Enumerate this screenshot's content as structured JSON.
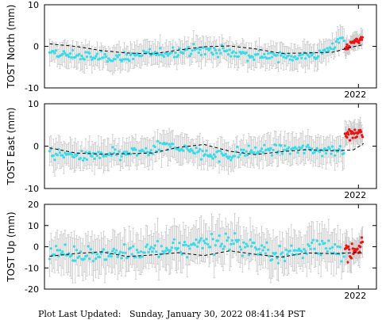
{
  "footer": {
    "label": "Plot Last Updated:",
    "timestamp": "Sunday, January 30, 2022 08:41:34 PST"
  },
  "colors": {
    "points_primary": "#33ddee",
    "points_recent": "#ee1111",
    "error_bars": "#c8c8c8",
    "model_line": "#000000",
    "frame": "#000000"
  },
  "chart_data": [
    {
      "type": "scatter",
      "title": "",
      "ylabel": "TOST North (mm)",
      "xlabel": "",
      "ylim": [
        -10,
        10
      ],
      "yticks": [
        -10,
        0,
        10
      ],
      "xlim": [
        2015.9,
        2022.35
      ],
      "xtick_label": "2022",
      "xtick_value": 2022.0,
      "grid": false,
      "legend": "none",
      "model_curve": {
        "x": [
          2016.0,
          2016.5,
          2017.0,
          2017.5,
          2018.0,
          2018.5,
          2019.0,
          2019.5,
          2020.0,
          2020.5,
          2021.0,
          2021.5,
          2021.9,
          2022.1
        ],
        "y": [
          0.6,
          0.0,
          -1.0,
          -1.6,
          -1.8,
          -0.9,
          -0.1,
          0.1,
          -0.6,
          -1.7,
          -1.6,
          -1.4,
          -0.1,
          0.4
        ]
      },
      "series": [
        {
          "name": "",
          "color_key": "points_primary",
          "x_start": 2016.0,
          "x_end": 2021.72,
          "n": 230,
          "anchors_y": [
            -1.9,
            -2.2,
            -2.7,
            -2.6,
            -1.9,
            -1.4,
            -0.8,
            -1.2,
            -1.9,
            -2.4,
            -2.3,
            -2.0,
            2.0
          ],
          "scatter_sd": 1.1,
          "error_bar": 2.6
        },
        {
          "name": "",
          "color_key": "points_recent",
          "x_start": 2021.74,
          "x_end": 2022.08,
          "n": 26,
          "anchors_y": [
            -0.8,
            1.2,
            1.9
          ],
          "scatter_sd": 0.8,
          "error_bar": 1.8
        }
      ]
    },
    {
      "type": "scatter",
      "title": "",
      "ylabel": "TOST East (mm)",
      "xlabel": "",
      "ylim": [
        -10,
        10
      ],
      "yticks": [
        -10,
        0,
        10
      ],
      "xlim": [
        2015.9,
        2022.35
      ],
      "xtick_label": "2022",
      "xtick_value": 2022.0,
      "grid": false,
      "legend": "none",
      "model_curve": {
        "x": [
          2016.0,
          2016.5,
          2017.0,
          2017.5,
          2018.0,
          2018.5,
          2019.0,
          2019.5,
          2020.0,
          2020.5,
          2021.0,
          2021.5,
          2021.9,
          2022.1
        ],
        "y": [
          -0.4,
          -1.6,
          -1.9,
          -1.8,
          -1.6,
          -0.3,
          0.4,
          -1.2,
          -2.0,
          -1.3,
          -0.8,
          -1.1,
          -0.9,
          0.6
        ]
      },
      "series": [
        {
          "name": "",
          "color_key": "points_primary",
          "x_start": 2016.0,
          "x_end": 2021.72,
          "n": 230,
          "anchors_y": [
            -1.7,
            -2.3,
            -2.4,
            -1.9,
            -1.3,
            0.2,
            -1.6,
            -2.4,
            -1.5,
            -0.7,
            -0.6,
            -1.0,
            -0.4
          ],
          "scatter_sd": 1.1,
          "error_bar": 3.0
        },
        {
          "name": "",
          "color_key": "points_recent",
          "x_start": 2021.74,
          "x_end": 2022.08,
          "n": 26,
          "anchors_y": [
            2.3,
            2.8,
            3.2
          ],
          "scatter_sd": 1.0,
          "error_bar": 2.4
        }
      ]
    },
    {
      "type": "scatter",
      "title": "",
      "ylabel": "TOST Up (mm)",
      "xlabel": "",
      "ylim": [
        -20,
        20
      ],
      "yticks": [
        -20,
        -10,
        0,
        10,
        20
      ],
      "xlim": [
        2015.9,
        2022.35
      ],
      "xtick_label": "2022",
      "xtick_value": 2022.0,
      "grid": false,
      "legend": "none",
      "model_curve": {
        "x": [
          2016.0,
          2016.5,
          2017.0,
          2017.5,
          2018.0,
          2018.5,
          2019.0,
          2019.5,
          2020.0,
          2020.5,
          2021.0,
          2021.5,
          2021.9,
          2022.1
        ],
        "y": [
          -4.5,
          -3.2,
          -2.4,
          -4.6,
          -3.9,
          -2.8,
          -4.2,
          -1.9,
          -3.6,
          -4.9,
          -2.9,
          -3.3,
          -2.8,
          -3.0
        ]
      },
      "series": [
        {
          "name": "",
          "color_key": "points_primary",
          "x_start": 2016.0,
          "x_end": 2021.72,
          "n": 230,
          "anchors_y": [
            -3.0,
            -2.5,
            -3.5,
            -4.0,
            -2.0,
            -1.0,
            1.5,
            3.0,
            0.5,
            -3.0,
            -2.0,
            0.0,
            -2.5
          ],
          "scatter_sd": 3.8,
          "error_bar": 8.5
        },
        {
          "name": "",
          "color_key": "points_recent",
          "x_start": 2021.74,
          "x_end": 2022.08,
          "n": 26,
          "anchors_y": [
            -1.5,
            -2.5,
            1.0
          ],
          "scatter_sd": 3.0,
          "error_bar": 6.0
        }
      ]
    }
  ]
}
